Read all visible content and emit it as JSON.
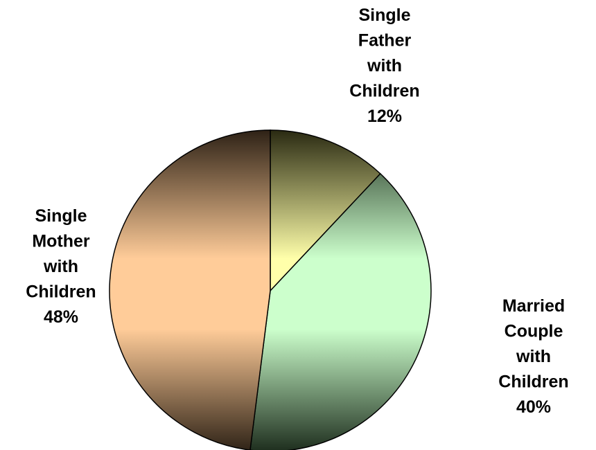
{
  "chart_data": {
    "type": "pie",
    "title": "",
    "slices": [
      {
        "label_lines": [
          "Single",
          "Father",
          "with",
          "Children"
        ],
        "value": 12,
        "value_label": "12%",
        "colors": {
          "light": "#FFFFAA",
          "dark": "#2A2A12"
        }
      },
      {
        "label_lines": [
          "Married",
          "Couple",
          "with",
          "Children"
        ],
        "value": 40,
        "value_label": "40%",
        "colors": {
          "light": "#CCFFCC",
          "dark": "#1E2E1E"
        }
      },
      {
        "label_lines": [
          "Single",
          "Mother",
          "with",
          "Children"
        ],
        "value": 48,
        "value_label": "48%",
        "colors": {
          "light": "#FFCC99",
          "dark": "#2E2216"
        }
      }
    ],
    "start_angle_deg": 0,
    "direction": "clockwise",
    "outline_color": "#000000",
    "legend": "none"
  }
}
